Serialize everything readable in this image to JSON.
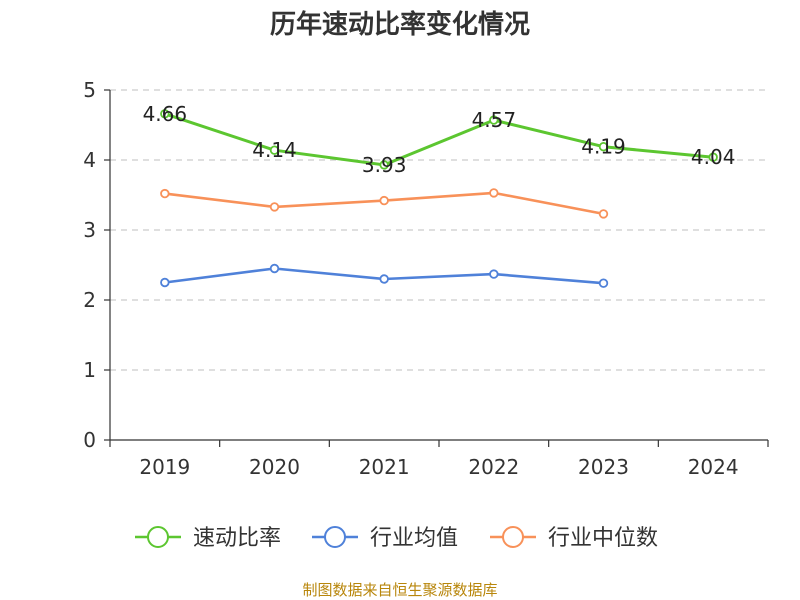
{
  "chart_data": {
    "type": "line",
    "title": "历年速动比率变化情况",
    "categories": [
      "2019",
      "2020",
      "2021",
      "2022",
      "2023",
      "2024"
    ],
    "ylim": [
      0,
      5
    ],
    "yticks": [
      "0",
      "1",
      "2",
      "3",
      "4",
      "5"
    ],
    "grid": true,
    "legend_position": "bottom",
    "series": [
      {
        "name": "速动比率",
        "color": "#5cc630",
        "values": [
          4.66,
          4.14,
          3.93,
          4.57,
          4.19,
          4.04
        ],
        "labels": [
          "4.66",
          "4.14",
          "3.93",
          "4.57",
          "4.19",
          "4.04"
        ]
      },
      {
        "name": "行业均值",
        "color": "#4f81d9",
        "values": [
          2.25,
          2.45,
          2.3,
          2.37,
          2.24,
          null
        ]
      },
      {
        "name": "行业中位数",
        "color": "#f89159",
        "values": [
          3.52,
          3.33,
          3.42,
          3.53,
          3.23,
          null
        ]
      }
    ]
  },
  "source": "制图数据来自恒生聚源数据库"
}
